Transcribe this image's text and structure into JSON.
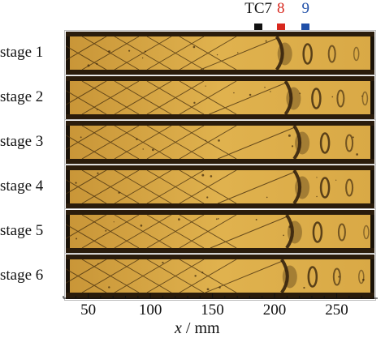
{
  "figure": {
    "thermocouples": [
      {
        "label": "TC7",
        "color": "#111111",
        "x_mm": 187
      },
      {
        "label": "8",
        "color": "#d8281e",
        "x_mm": 205
      },
      {
        "label": "9",
        "color": "#1f4fa8",
        "x_mm": 225
      }
    ],
    "stages": [
      {
        "label": "stage 1",
        "shock_x_mm": 205
      },
      {
        "label": "stage 2",
        "shock_x_mm": 212
      },
      {
        "label": "stage 3",
        "shock_x_mm": 219
      },
      {
        "label": "stage 4",
        "shock_x_mm": 219
      },
      {
        "label": "stage 5",
        "shock_x_mm": 213
      },
      {
        "label": "stage 6",
        "shock_x_mm": 209
      }
    ],
    "x_axis": {
      "variable": "x",
      "unit": "mm",
      "range_mm": [
        30,
        283
      ],
      "major_ticks": [
        "50",
        "100",
        "150",
        "200",
        "250"
      ],
      "minor_tick_step_mm": 10
    },
    "colors": {
      "flow_yellow": "#e0b24e",
      "panel_frame": "#1a1208",
      "shock_dark": "#2a1a0a"
    }
  }
}
